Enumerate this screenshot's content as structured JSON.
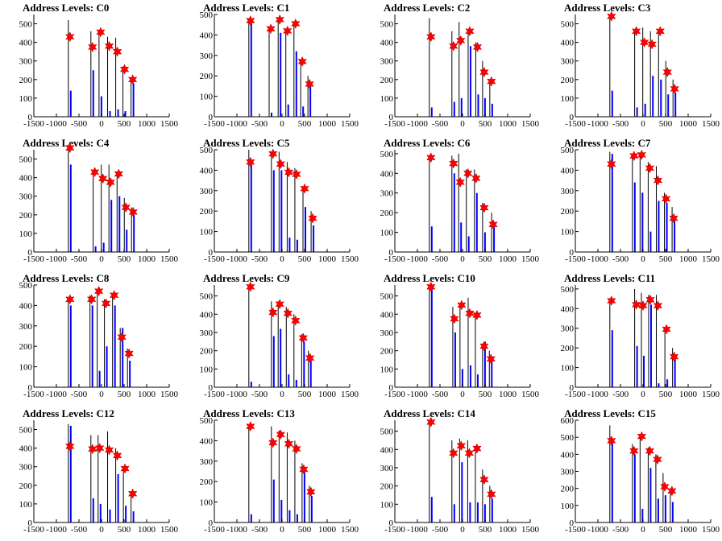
{
  "colors": {
    "bar": "#0000ff",
    "spike": "#000000",
    "marker": "#ff0000",
    "axis": "#000000"
  },
  "chart_data": [
    {
      "type": "bar",
      "title": "Address Levels: C0",
      "xlim": [
        -1500,
        1500
      ],
      "ylim": [
        0,
        550
      ],
      "xticks": [
        -1500,
        -1000,
        -500,
        0,
        500,
        1000,
        1500
      ],
      "yticks": [
        0,
        100,
        200,
        300,
        400,
        500
      ],
      "peaks": [
        {
          "x": -700,
          "y": 430,
          "top": 520,
          "bar": 140
        },
        {
          "x": -200,
          "y": 375,
          "top": 460,
          "bar": 250
        },
        {
          "x": -20,
          "y": 455,
          "top": 455,
          "bar": 110
        },
        {
          "x": 170,
          "y": 380,
          "top": 430,
          "bar": 30
        },
        {
          "x": 350,
          "y": 350,
          "top": 425,
          "bar": 40
        },
        {
          "x": 510,
          "y": 255,
          "top": 270,
          "bar": 30
        },
        {
          "x": 690,
          "y": 200,
          "top": 210,
          "bar": 180
        }
      ]
    },
    {
      "type": "bar",
      "title": "Address Levels: C1",
      "xlim": [
        -1500,
        1500
      ],
      "ylim": [
        0,
        500
      ],
      "xticks": [
        -1500,
        -1000,
        -500,
        0,
        500,
        1000,
        1500
      ],
      "yticks": [
        0,
        100,
        200,
        300,
        400,
        500
      ],
      "peaks": [
        {
          "x": -700,
          "y": 470,
          "top": 470,
          "bar": 470
        },
        {
          "x": -250,
          "y": 430,
          "top": 430,
          "bar": 20
        },
        {
          "x": -50,
          "y": 475,
          "top": 475,
          "bar": 410
        },
        {
          "x": 120,
          "y": 420,
          "top": 430,
          "bar": 60
        },
        {
          "x": 300,
          "y": 455,
          "top": 455,
          "bar": 320
        },
        {
          "x": 450,
          "y": 270,
          "top": 270,
          "bar": 50
        },
        {
          "x": 610,
          "y": 160,
          "top": 200,
          "bar": 160
        }
      ]
    },
    {
      "type": "bar",
      "title": "Address Levels: C2",
      "xlim": [
        -1500,
        1500
      ],
      "ylim": [
        0,
        550
      ],
      "xticks": [
        -1500,
        -1000,
        -500,
        0,
        500,
        1000,
        1500
      ],
      "yticks": [
        0,
        100,
        200,
        300,
        400,
        500
      ],
      "peaks": [
        {
          "x": -700,
          "y": 430,
          "top": 530,
          "bar": 50
        },
        {
          "x": -200,
          "y": 380,
          "top": 460,
          "bar": 80
        },
        {
          "x": -40,
          "y": 410,
          "top": 510,
          "bar": 100
        },
        {
          "x": 160,
          "y": 460,
          "top": 460,
          "bar": 380
        },
        {
          "x": 330,
          "y": 375,
          "top": 400,
          "bar": 120
        },
        {
          "x": 480,
          "y": 240,
          "top": 300,
          "bar": 100
        },
        {
          "x": 640,
          "y": 190,
          "top": 200,
          "bar": 70
        }
      ]
    },
    {
      "type": "bar",
      "title": "Address Levels: C3",
      "xlim": [
        -1500,
        1500
      ],
      "ylim": [
        0,
        550
      ],
      "xticks": [
        -1500,
        -1000,
        -500,
        0,
        500,
        1000,
        1500
      ],
      "yticks": [
        0,
        100,
        200,
        300,
        400,
        500
      ],
      "peaks": [
        {
          "x": -700,
          "y": 540,
          "top": 540,
          "bar": 140
        },
        {
          "x": -150,
          "y": 460,
          "top": 460,
          "bar": 50
        },
        {
          "x": 30,
          "y": 400,
          "top": 480,
          "bar": 70
        },
        {
          "x": 200,
          "y": 390,
          "top": 460,
          "bar": 220
        },
        {
          "x": 380,
          "y": 460,
          "top": 460,
          "bar": 200
        },
        {
          "x": 540,
          "y": 240,
          "top": 300,
          "bar": 120
        },
        {
          "x": 700,
          "y": 150,
          "top": 200,
          "bar": 130
        }
      ]
    },
    {
      "type": "bar",
      "title": "Address Levels: C4",
      "xlim": [
        -1500,
        1500
      ],
      "ylim": [
        0,
        550
      ],
      "xticks": [
        -1500,
        -1000,
        -500,
        0,
        500,
        1000,
        1500
      ],
      "yticks": [
        0,
        100,
        200,
        300,
        400,
        500
      ],
      "peaks": [
        {
          "x": -700,
          "y": 560,
          "top": 560,
          "bar": 470
        },
        {
          "x": -150,
          "y": 430,
          "top": 430,
          "bar": 30
        },
        {
          "x": 30,
          "y": 395,
          "top": 470,
          "bar": 50
        },
        {
          "x": 200,
          "y": 375,
          "top": 470,
          "bar": 280
        },
        {
          "x": 380,
          "y": 420,
          "top": 420,
          "bar": 300
        },
        {
          "x": 540,
          "y": 240,
          "top": 290,
          "bar": 120
        },
        {
          "x": 700,
          "y": 215,
          "top": 240,
          "bar": 200
        }
      ]
    },
    {
      "type": "bar",
      "title": "Address Levels: C5",
      "xlim": [
        -1500,
        1500
      ],
      "ylim": [
        0,
        500
      ],
      "xticks": [
        -1500,
        -1000,
        -500,
        0,
        500,
        1000,
        1500
      ],
      "yticks": [
        0,
        100,
        200,
        300,
        400,
        500
      ],
      "peaks": [
        {
          "x": -700,
          "y": 440,
          "top": 500,
          "bar": 440
        },
        {
          "x": -200,
          "y": 480,
          "top": 480,
          "bar": 400
        },
        {
          "x": -30,
          "y": 430,
          "top": 490,
          "bar": 400
        },
        {
          "x": 150,
          "y": 390,
          "top": 440,
          "bar": 70
        },
        {
          "x": 320,
          "y": 380,
          "top": 410,
          "bar": 60
        },
        {
          "x": 500,
          "y": 310,
          "top": 320,
          "bar": 220
        },
        {
          "x": 680,
          "y": 165,
          "top": 200,
          "bar": 130
        }
      ]
    },
    {
      "type": "bar",
      "title": "Address Levels: C6",
      "xlim": [
        -1500,
        1500
      ],
      "ylim": [
        0,
        520
      ],
      "xticks": [
        -1500,
        -1000,
        -500,
        0,
        500,
        1000,
        1500
      ],
      "yticks": [
        0,
        100,
        200,
        300,
        400,
        500
      ],
      "peaks": [
        {
          "x": -700,
          "y": 480,
          "top": 490,
          "bar": 130
        },
        {
          "x": -200,
          "y": 450,
          "top": 490,
          "bar": 400
        },
        {
          "x": -50,
          "y": 355,
          "top": 500,
          "bar": 150
        },
        {
          "x": 120,
          "y": 400,
          "top": 420,
          "bar": 80
        },
        {
          "x": 300,
          "y": 375,
          "top": 420,
          "bar": 300
        },
        {
          "x": 480,
          "y": 225,
          "top": 250,
          "bar": 100
        },
        {
          "x": 680,
          "y": 140,
          "top": 200,
          "bar": 130
        }
      ]
    },
    {
      "type": "bar",
      "title": "Address Levels: C7",
      "xlim": [
        -1500,
        1500
      ],
      "ylim": [
        0,
        500
      ],
      "xticks": [
        -1500,
        -1000,
        -500,
        0,
        500,
        1000,
        1500
      ],
      "yticks": [
        0,
        100,
        200,
        300,
        400,
        500
      ],
      "peaks": [
        {
          "x": -700,
          "y": 430,
          "top": 490,
          "bar": 480
        },
        {
          "x": -200,
          "y": 470,
          "top": 470,
          "bar": 340
        },
        {
          "x": -30,
          "y": 475,
          "top": 475,
          "bar": 290
        },
        {
          "x": 150,
          "y": 410,
          "top": 440,
          "bar": 100
        },
        {
          "x": 330,
          "y": 350,
          "top": 420,
          "bar": 250
        },
        {
          "x": 510,
          "y": 260,
          "top": 290,
          "bar": 240
        },
        {
          "x": 680,
          "y": 165,
          "top": 220,
          "bar": 160
        }
      ]
    },
    {
      "type": "bar",
      "title": "Address Levels: C8",
      "xlim": [
        -1500,
        1500
      ],
      "ylim": [
        0,
        500
      ],
      "xticks": [
        -1500,
        -1000,
        -500,
        0,
        500,
        1000,
        1500
      ],
      "yticks": [
        0,
        100,
        200,
        300,
        400,
        500
      ],
      "peaks": [
        {
          "x": -700,
          "y": 430,
          "top": 430,
          "bar": 400
        },
        {
          "x": -220,
          "y": 430,
          "top": 450,
          "bar": 400
        },
        {
          "x": -60,
          "y": 470,
          "top": 470,
          "bar": 80
        },
        {
          "x": 100,
          "y": 410,
          "top": 430,
          "bar": 200
        },
        {
          "x": 280,
          "y": 450,
          "top": 450,
          "bar": 400
        },
        {
          "x": 450,
          "y": 245,
          "top": 290,
          "bar": 290
        },
        {
          "x": 610,
          "y": 165,
          "top": 190,
          "bar": 130
        }
      ]
    },
    {
      "type": "bar",
      "title": "Address Levels: C9",
      "xlim": [
        -1500,
        1500
      ],
      "ylim": [
        0,
        560
      ],
      "xticks": [
        -1500,
        -1000,
        -500,
        0,
        500,
        1000,
        1500
      ],
      "yticks": [
        0,
        100,
        200,
        300,
        400,
        500
      ],
      "peaks": [
        {
          "x": -700,
          "y": 550,
          "top": 550,
          "bar": 30
        },
        {
          "x": -200,
          "y": 410,
          "top": 470,
          "bar": 280
        },
        {
          "x": -50,
          "y": 455,
          "top": 470,
          "bar": 320
        },
        {
          "x": 130,
          "y": 405,
          "top": 440,
          "bar": 70
        },
        {
          "x": 300,
          "y": 365,
          "top": 400,
          "bar": 40
        },
        {
          "x": 470,
          "y": 270,
          "top": 290,
          "bar": 250
        },
        {
          "x": 620,
          "y": 160,
          "top": 200,
          "bar": 150
        }
      ]
    },
    {
      "type": "bar",
      "title": "Address Levels: C10",
      "xlim": [
        -1500,
        1500
      ],
      "ylim": [
        0,
        560
      ],
      "xticks": [
        -1500,
        -1000,
        -500,
        0,
        500,
        1000,
        1500
      ],
      "yticks": [
        0,
        100,
        200,
        300,
        400,
        500
      ],
      "peaks": [
        {
          "x": -700,
          "y": 550,
          "top": 550,
          "bar": 550
        },
        {
          "x": -180,
          "y": 375,
          "top": 440,
          "bar": 300
        },
        {
          "x": -20,
          "y": 450,
          "top": 460,
          "bar": 100
        },
        {
          "x": 160,
          "y": 405,
          "top": 490,
          "bar": 120
        },
        {
          "x": 320,
          "y": 395,
          "top": 400,
          "bar": 70
        },
        {
          "x": 480,
          "y": 225,
          "top": 240,
          "bar": 250
        },
        {
          "x": 630,
          "y": 155,
          "top": 200,
          "bar": 170
        }
      ]
    },
    {
      "type": "bar",
      "title": "Address Levels: C11",
      "xlim": [
        -1500,
        1500
      ],
      "ylim": [
        0,
        520
      ],
      "xticks": [
        -1500,
        -1000,
        -500,
        0,
        500,
        1000,
        1500
      ],
      "yticks": [
        0,
        100,
        200,
        300,
        400,
        500
      ],
      "peaks": [
        {
          "x": -700,
          "y": 440,
          "top": 440,
          "bar": 290
        },
        {
          "x": -150,
          "y": 420,
          "top": 500,
          "bar": 210
        },
        {
          "x": 0,
          "y": 415,
          "top": 480,
          "bar": 160
        },
        {
          "x": 160,
          "y": 445,
          "top": 470,
          "bar": 420
        },
        {
          "x": 330,
          "y": 415,
          "top": 470,
          "bar": 20
        },
        {
          "x": 520,
          "y": 295,
          "top": 300,
          "bar": 40
        },
        {
          "x": 690,
          "y": 155,
          "top": 200,
          "bar": 160
        }
      ]
    },
    {
      "type": "bar",
      "title": "Address Levels: C12",
      "xlim": [
        -1500,
        1500
      ],
      "ylim": [
        0,
        550
      ],
      "xticks": [
        -1500,
        -1000,
        -500,
        0,
        500,
        1000,
        1500
      ],
      "yticks": [
        0,
        100,
        200,
        300,
        400,
        500
      ],
      "peaks": [
        {
          "x": -700,
          "y": 410,
          "top": 530,
          "bar": 520
        },
        {
          "x": -200,
          "y": 395,
          "top": 470,
          "bar": 130
        },
        {
          "x": -40,
          "y": 400,
          "top": 470,
          "bar": 100
        },
        {
          "x": 170,
          "y": 390,
          "top": 490,
          "bar": 70
        },
        {
          "x": 350,
          "y": 360,
          "top": 400,
          "bar": 260
        },
        {
          "x": 520,
          "y": 290,
          "top": 300,
          "bar": 90
        },
        {
          "x": 690,
          "y": 155,
          "top": 160,
          "bar": 60
        }
      ]
    },
    {
      "type": "bar",
      "title": "Address Levels: C13",
      "xlim": [
        -1500,
        1500
      ],
      "ylim": [
        0,
        500
      ],
      "xticks": [
        -1500,
        -1000,
        -500,
        0,
        500,
        1000,
        1500
      ],
      "yticks": [
        0,
        100,
        200,
        300,
        400,
        500
      ],
      "peaks": [
        {
          "x": -700,
          "y": 470,
          "top": 470,
          "bar": 40
        },
        {
          "x": -200,
          "y": 390,
          "top": 470,
          "bar": 210
        },
        {
          "x": -30,
          "y": 430,
          "top": 450,
          "bar": 110
        },
        {
          "x": 150,
          "y": 385,
          "top": 440,
          "bar": 60
        },
        {
          "x": 320,
          "y": 360,
          "top": 400,
          "bar": 40
        },
        {
          "x": 480,
          "y": 260,
          "top": 290,
          "bar": 250
        },
        {
          "x": 640,
          "y": 150,
          "top": 180,
          "bar": 130
        }
      ]
    },
    {
      "type": "bar",
      "title": "Address Levels: C14",
      "xlim": [
        -1500,
        1500
      ],
      "ylim": [
        0,
        560
      ],
      "xticks": [
        -1500,
        -1000,
        -500,
        0,
        500,
        1000,
        1500
      ],
      "yticks": [
        0,
        100,
        200,
        300,
        400,
        500
      ],
      "peaks": [
        {
          "x": -700,
          "y": 550,
          "top": 550,
          "bar": 140
        },
        {
          "x": -200,
          "y": 380,
          "top": 450,
          "bar": 100
        },
        {
          "x": -30,
          "y": 420,
          "top": 460,
          "bar": 330
        },
        {
          "x": 150,
          "y": 380,
          "top": 450,
          "bar": 110
        },
        {
          "x": 320,
          "y": 405,
          "top": 420,
          "bar": 110
        },
        {
          "x": 480,
          "y": 235,
          "top": 290,
          "bar": 100
        },
        {
          "x": 640,
          "y": 155,
          "top": 200,
          "bar": 130
        }
      ]
    },
    {
      "type": "bar",
      "title": "Address Levels: C15",
      "xlim": [
        -1500,
        1500
      ],
      "ylim": [
        0,
        600
      ],
      "xticks": [
        -1500,
        -1000,
        -500,
        0,
        500,
        1000,
        1500
      ],
      "yticks": [
        0,
        100,
        200,
        300,
        400,
        500,
        600
      ],
      "peaks": [
        {
          "x": -700,
          "y": 480,
          "top": 570,
          "bar": 470
        },
        {
          "x": -200,
          "y": 420,
          "top": 460,
          "bar": 400
        },
        {
          "x": -30,
          "y": 505,
          "top": 510,
          "bar": 80
        },
        {
          "x": 150,
          "y": 420,
          "top": 440,
          "bar": 320
        },
        {
          "x": 320,
          "y": 370,
          "top": 400,
          "bar": 140
        },
        {
          "x": 480,
          "y": 210,
          "top": 290,
          "bar": 160
        },
        {
          "x": 640,
          "y": 185,
          "top": 200,
          "bar": 120
        }
      ]
    }
  ]
}
